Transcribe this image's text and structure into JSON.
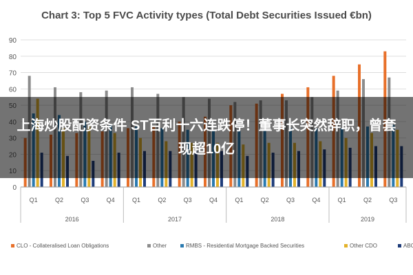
{
  "chart_data": {
    "type": "bar",
    "title": "Chart 3: Top 5 FVC Activity types (Total Debt Securities Issued €bn)",
    "xlabel": "",
    "ylabel": "",
    "ylim": [
      0,
      90
    ],
    "yticks": [
      "0",
      "10",
      "20",
      "30",
      "40",
      "50",
      "60",
      "70",
      "80",
      "90"
    ],
    "grid": true,
    "legend_position": "bottom",
    "categories": [
      "Q1",
      "Q2",
      "Q3",
      "Q4",
      "Q1",
      "Q2",
      "Q3",
      "Q4",
      "Q1",
      "Q2",
      "Q3",
      "Q4",
      "Q1",
      "Q2",
      "Q3"
    ],
    "years": [
      {
        "label": "2016",
        "span": 4
      },
      {
        "label": "2017",
        "span": 4
      },
      {
        "label": "2018",
        "span": 4
      },
      {
        "label": "2019",
        "span": 3
      }
    ],
    "series": [
      {
        "name": "CLO - Collateralised Loan Obligations",
        "color": "#e8702a",
        "values": [
          30,
          32,
          33,
          34,
          36,
          37,
          40,
          43,
          50,
          51,
          57,
          61,
          68,
          75,
          83
        ]
      },
      {
        "name": "Other",
        "color": "#8c8c8c",
        "values": [
          68,
          61,
          58,
          59,
          61,
          57,
          55,
          54,
          52,
          53,
          53,
          55,
          59,
          66,
          67
        ]
      },
      {
        "name": "RMBS - Residential Mortgage Backed Securities",
        "color": "#2a7ab0",
        "values": [
          45,
          44,
          40,
          38,
          37,
          36,
          35,
          35,
          35,
          35,
          36,
          36,
          36,
          37,
          38
        ]
      },
      {
        "name": "Other CDO",
        "color": "#e3b22a",
        "values": [
          54,
          36,
          37,
          33,
          30,
          28,
          27,
          27,
          26,
          27,
          27,
          28,
          30,
          33,
          35
        ]
      },
      {
        "name": "ABCP",
        "color": "#1f3d7a",
        "values": [
          21,
          19,
          16,
          21,
          22,
          22,
          22,
          22,
          19,
          21,
          22,
          23,
          24,
          25,
          25
        ]
      }
    ]
  },
  "overlay": {
    "text": "上海炒股配资条件 ST百利十六连跌停！董事长突然辞职，曾套现超10亿"
  }
}
